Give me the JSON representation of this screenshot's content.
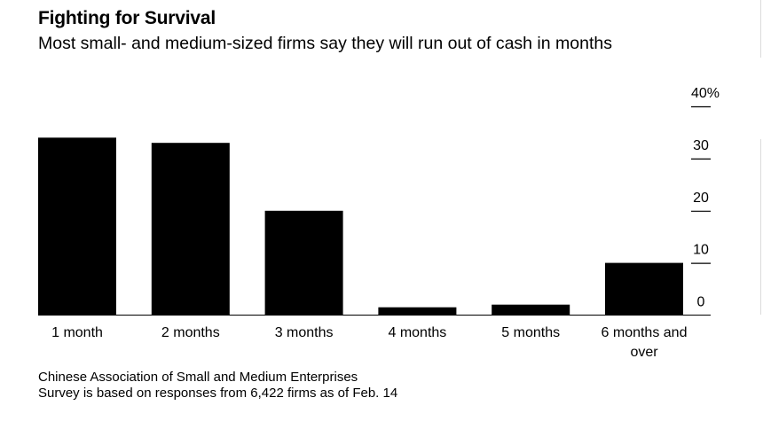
{
  "title": "Fighting for Survival",
  "subtitle": "Most small- and medium-sized firms say they will run out of cash in months",
  "source": {
    "line1": "Chinese Association of Small and Medium Enterprises",
    "line2": "Survey is based on responses from 6,422 firms as of Feb. 14"
  },
  "colors": {
    "bar": "#000000",
    "axis": "#000000",
    "background": "#ffffff"
  },
  "chart_data": {
    "type": "bar",
    "title": "Fighting for Survival",
    "subtitle": "Most small- and medium-sized firms say they will run out of cash in months",
    "categories": [
      "1 month",
      "2 months",
      "3 months",
      "4 months",
      "5 months",
      "6 months and over"
    ],
    "category_lines": [
      [
        "1 month"
      ],
      [
        "2 months"
      ],
      [
        "3 months"
      ],
      [
        "4 months"
      ],
      [
        "5 months"
      ],
      [
        "6 months and",
        "over"
      ]
    ],
    "values": [
      34,
      33,
      20,
      1.5,
      2,
      10
    ],
    "unit": "%",
    "ylim": [
      0,
      40
    ],
    "yticks": [
      0,
      10,
      20,
      30,
      40
    ],
    "ytick_labels": [
      "0",
      "10",
      "20",
      "30",
      "40%"
    ],
    "axis_position": "right",
    "xlabel": "",
    "ylabel": ""
  }
}
